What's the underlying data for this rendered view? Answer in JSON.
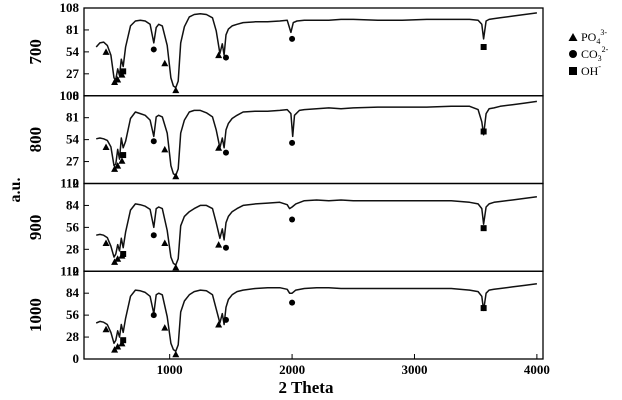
{
  "chart_data": {
    "type": "line",
    "xlabel": "2 Theta",
    "ylabel": "a.u.",
    "xlim": [
      300,
      4050
    ],
    "xticks": [
      1000,
      2000,
      3000,
      4000
    ],
    "grid": false,
    "legend_position": "right",
    "legend": [
      {
        "marker": "triangle",
        "label": "PO",
        "sub": "4",
        "sup": "3-"
      },
      {
        "marker": "circle",
        "label": "CO",
        "sub": "3",
        "sup": "2-"
      },
      {
        "marker": "square",
        "label": "OH",
        "sub": "",
        "sup": "-"
      }
    ],
    "panels": [
      {
        "name": "700",
        "ylim": [
          0,
          108
        ],
        "yticks": [
          0,
          27,
          54,
          81,
          108
        ],
        "x": [
          400,
          430,
          460,
          490,
          520,
          545,
          560,
          575,
          590,
          605,
          620,
          640,
          680,
          720,
          760,
          800,
          840,
          870,
          890,
          910,
          940,
          980,
          1010,
          1030,
          1050,
          1070,
          1090,
          1120,
          1160,
          1200,
          1250,
          1300,
          1350,
          1380,
          1410,
          1430,
          1445,
          1460,
          1480,
          1510,
          1550,
          1600,
          1700,
          1800,
          1900,
          1960,
          1990,
          2010,
          2040,
          2100,
          2200,
          2300,
          2400,
          2500,
          2700,
          2900,
          3100,
          3300,
          3450,
          3520,
          3550,
          3565,
          3585,
          3610,
          3650,
          3700,
          3800,
          3900,
          4000
        ],
        "y": [
          60,
          65,
          66,
          62,
          50,
          22,
          20,
          33,
          25,
          45,
          36,
          60,
          86,
          92,
          93,
          92,
          88,
          65,
          84,
          88,
          86,
          62,
          22,
          12,
          10,
          18,
          65,
          85,
          97,
          100,
          101,
          100,
          96,
          80,
          52,
          64,
          50,
          75,
          82,
          86,
          88,
          90,
          91,
          91,
          92,
          93,
          78,
          90,
          92,
          93,
          93,
          93,
          94,
          94,
          93,
          93,
          94,
          94,
          94,
          93,
          88,
          70,
          92,
          94,
          95,
          96,
          98,
          100,
          102
        ]
      },
      {
        "name": "800",
        "ylim": [
          0,
          108
        ],
        "yticks": [
          0,
          27,
          54,
          81,
          108
        ],
        "x": [
          400,
          430,
          460,
          490,
          520,
          545,
          560,
          575,
          590,
          605,
          620,
          640,
          680,
          720,
          760,
          800,
          840,
          870,
          890,
          910,
          940,
          980,
          1010,
          1030,
          1050,
          1070,
          1090,
          1120,
          1160,
          1200,
          1250,
          1300,
          1350,
          1380,
          1410,
          1430,
          1445,
          1460,
          1480,
          1510,
          1550,
          1600,
          1700,
          1800,
          1900,
          1960,
          1990,
          2005,
          2020,
          2060,
          2100,
          2200,
          2300,
          2400,
          2500,
          2700,
          2900,
          3100,
          3300,
          3450,
          3520,
          3550,
          3565,
          3585,
          3610,
          3650,
          3700,
          3800,
          3900,
          4000
        ],
        "y": [
          55,
          56,
          55,
          53,
          45,
          22,
          24,
          42,
          30,
          56,
          44,
          52,
          80,
          88,
          86,
          84,
          78,
          58,
          82,
          84,
          82,
          62,
          22,
          12,
          10,
          18,
          62,
          78,
          88,
          90,
          90,
          87,
          82,
          66,
          44,
          56,
          44,
          66,
          74,
          80,
          84,
          88,
          89,
          89,
          90,
          91,
          86,
          58,
          84,
          90,
          91,
          92,
          93,
          92,
          93,
          94,
          94,
          94,
          95,
          95,
          91,
          76,
          60,
          86,
          92,
          93,
          95,
          97,
          99,
          101
        ]
      },
      {
        "name": "900",
        "ylim": [
          0,
          112
        ],
        "yticks": [
          0,
          28,
          56,
          84,
          112
        ],
        "x": [
          400,
          430,
          460,
          490,
          520,
          545,
          560,
          575,
          590,
          605,
          620,
          640,
          680,
          720,
          760,
          800,
          840,
          870,
          890,
          910,
          940,
          980,
          1010,
          1030,
          1050,
          1070,
          1090,
          1120,
          1160,
          1200,
          1250,
          1300,
          1350,
          1380,
          1410,
          1430,
          1445,
          1460,
          1480,
          1510,
          1550,
          1600,
          1700,
          1800,
          1900,
          1960,
          1980,
          2000,
          2030,
          2100,
          2200,
          2300,
          2400,
          2500,
          2700,
          2900,
          3100,
          3300,
          3450,
          3520,
          3550,
          3565,
          3585,
          3610,
          3650,
          3700,
          3800,
          3900,
          4000
        ],
        "y": [
          46,
          47,
          46,
          43,
          32,
          18,
          22,
          34,
          26,
          42,
          30,
          50,
          78,
          86,
          85,
          83,
          79,
          56,
          80,
          82,
          80,
          52,
          18,
          10,
          8,
          16,
          58,
          70,
          76,
          80,
          84,
          84,
          80,
          62,
          42,
          54,
          40,
          62,
          70,
          76,
          80,
          84,
          86,
          87,
          88,
          85,
          80,
          82,
          86,
          90,
          91,
          90,
          91,
          90,
          90,
          90,
          90,
          90,
          88,
          86,
          80,
          60,
          82,
          86,
          88,
          89,
          91,
          93,
          95
        ]
      },
      {
        "name": "1000",
        "ylim": [
          0,
          112
        ],
        "yticks": [
          0,
          28,
          56,
          84,
          112
        ],
        "x": [
          400,
          430,
          460,
          490,
          520,
          545,
          560,
          575,
          590,
          605,
          620,
          640,
          680,
          720,
          760,
          800,
          840,
          870,
          890,
          910,
          940,
          980,
          1010,
          1030,
          1050,
          1070,
          1090,
          1120,
          1160,
          1200,
          1250,
          1300,
          1350,
          1380,
          1410,
          1430,
          1445,
          1460,
          1480,
          1510,
          1550,
          1600,
          1700,
          1800,
          1900,
          1960,
          1980,
          2000,
          2030,
          2100,
          2200,
          2300,
          2400,
          2500,
          2700,
          2900,
          3100,
          3300,
          3450,
          3520,
          3550,
          3565,
          3585,
          3610,
          3650,
          3700,
          3800,
          3900,
          4000
        ],
        "y": [
          46,
          48,
          47,
          44,
          34,
          20,
          24,
          36,
          28,
          44,
          34,
          52,
          80,
          88,
          87,
          85,
          80,
          58,
          82,
          84,
          82,
          54,
          20,
          12,
          10,
          18,
          60,
          74,
          82,
          86,
          88,
          87,
          82,
          64,
          46,
          58,
          44,
          66,
          76,
          82,
          86,
          88,
          90,
          91,
          91,
          89,
          84,
          84,
          88,
          90,
          91,
          91,
          90,
          90,
          90,
          90,
          90,
          90,
          88,
          86,
          80,
          62,
          84,
          88,
          89,
          90,
          92,
          94,
          96
        ]
      }
    ],
    "markers": [
      {
        "panel": "700",
        "triangles": [
          [
            480,
            54
          ],
          [
            550,
            17
          ],
          [
            575,
            20
          ],
          [
            610,
            26
          ],
          [
            960,
            40
          ],
          [
            1050,
            7
          ],
          [
            1400,
            50
          ]
        ],
        "circles": [
          [
            870,
            57
          ],
          [
            1460,
            47
          ],
          [
            2000,
            70
          ]
        ],
        "squares": [
          [
            620,
            30
          ],
          [
            3565,
            60
          ]
        ]
      },
      {
        "panel": "800",
        "triangles": [
          [
            480,
            45
          ],
          [
            550,
            18
          ],
          [
            575,
            22
          ],
          [
            610,
            28
          ],
          [
            960,
            42
          ],
          [
            1050,
            9
          ],
          [
            1400,
            44
          ]
        ],
        "circles": [
          [
            870,
            52
          ],
          [
            1460,
            38
          ],
          [
            2000,
            50
          ]
        ],
        "squares": [
          [
            620,
            35
          ],
          [
            3565,
            64
          ]
        ]
      },
      {
        "panel": "900",
        "triangles": [
          [
            480,
            36
          ],
          [
            550,
            12
          ],
          [
            575,
            16
          ],
          [
            610,
            20
          ],
          [
            960,
            36
          ],
          [
            1050,
            5
          ],
          [
            1400,
            34
          ]
        ],
        "circles": [
          [
            870,
            46
          ],
          [
            1460,
            30
          ],
          [
            2000,
            66
          ]
        ],
        "squares": [
          [
            620,
            22
          ],
          [
            3565,
            55
          ]
        ]
      },
      {
        "panel": "1000",
        "triangles": [
          [
            480,
            38
          ],
          [
            550,
            12
          ],
          [
            575,
            16
          ],
          [
            610,
            20
          ],
          [
            960,
            40
          ],
          [
            1050,
            6
          ],
          [
            1400,
            44
          ]
        ],
        "circles": [
          [
            870,
            56
          ],
          [
            1460,
            50
          ],
          [
            2000,
            72
          ]
        ],
        "squares": [
          [
            620,
            24
          ],
          [
            3565,
            65
          ]
        ]
      }
    ]
  }
}
